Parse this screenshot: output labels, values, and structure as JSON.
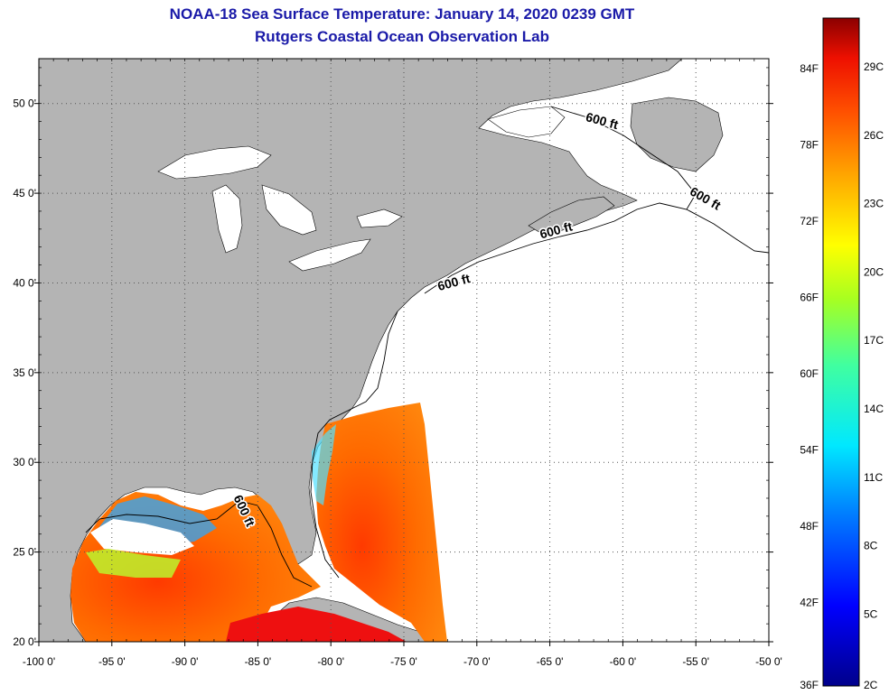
{
  "title_line1": "NOAA-18 Sea Surface Temperature:  January 14, 2020 0239 GMT",
  "title_line2": "Rutgers Coastal Ocean Observation Lab",
  "map": {
    "lon_range": [
      -100,
      -50
    ],
    "lat_range": [
      20,
      52.5
    ],
    "lon_ticks": [
      {
        "value": -100,
        "label": "-100 0'"
      },
      {
        "value": -95,
        "label": "-95 0'"
      },
      {
        "value": -90,
        "label": "-90 0'"
      },
      {
        "value": -85,
        "label": "-85 0'"
      },
      {
        "value": -80,
        "label": "-80 0'"
      },
      {
        "value": -75,
        "label": "-75 0'"
      },
      {
        "value": -70,
        "label": "-70 0'"
      },
      {
        "value": -65,
        "label": "-65 0'"
      },
      {
        "value": -60,
        "label": "-60 0'"
      },
      {
        "value": -55,
        "label": "-55 0'"
      },
      {
        "value": -50,
        "label": "-50 0'"
      }
    ],
    "lat_ticks": [
      {
        "value": 50,
        "label": "50 0'"
      },
      {
        "value": 45,
        "label": "45 0'"
      },
      {
        "value": 40,
        "label": "40 0'"
      },
      {
        "value": 35,
        "label": "35 0'"
      },
      {
        "value": 30,
        "label": "30 0'"
      },
      {
        "value": 25,
        "label": "25 0'"
      },
      {
        "value": 20,
        "label": "20 0'"
      }
    ],
    "contour_labels": [
      {
        "text": "600 ft",
        "lon": -61.5,
        "lat": 48.8,
        "angle": 15
      },
      {
        "text": "600 ft",
        "lon": -54.5,
        "lat": 44.5,
        "angle": 30
      },
      {
        "text": "600 ft",
        "lon": -64.5,
        "lat": 42.7,
        "angle": -15
      },
      {
        "text": "600 ft",
        "lon": -71.5,
        "lat": 39.8,
        "angle": -15
      },
      {
        "text": "600 ft",
        "lon": -86.2,
        "lat": 27.2,
        "angle": 65
      }
    ],
    "colors": {
      "land": "#b4b4b4",
      "water": "#ffffff",
      "grid": "#555555"
    }
  },
  "colorbar": {
    "fahrenheit": [
      "84F",
      "78F",
      "72F",
      "66F",
      "60F",
      "54F",
      "48F",
      "42F",
      "36F"
    ],
    "celsius": [
      "29C",
      "26C",
      "23C",
      "20C",
      "17C",
      "14C",
      "11C",
      "8C",
      "5C",
      "2C"
    ]
  }
}
